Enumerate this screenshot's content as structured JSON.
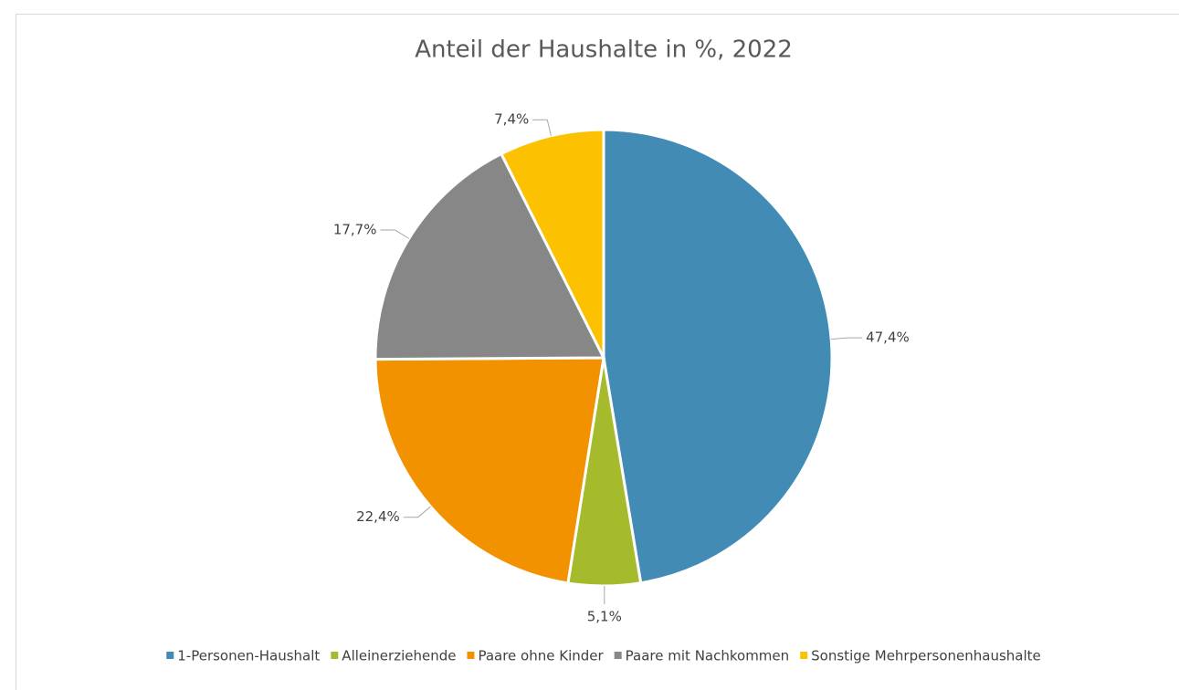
{
  "chart_data": {
    "type": "pie",
    "title": "Anteil der Haushalte in %, 2022",
    "categories": [
      "1-Personen-Haushalt",
      "Alleinerziehende",
      "Paare ohne Kinder",
      "Paare mit Nachkommen",
      "Sonstige Mehrpersonenhaushalte"
    ],
    "values": [
      47.4,
      5.1,
      22.4,
      17.7,
      7.4
    ],
    "value_labels": [
      "47,4%",
      "5,1%",
      "22,4%",
      "17,7%",
      "7,4%"
    ],
    "colors": [
      "#428bb5",
      "#a5bb2c",
      "#f39200",
      "#878787",
      "#fcc100"
    ],
    "legend": "bottom"
  }
}
